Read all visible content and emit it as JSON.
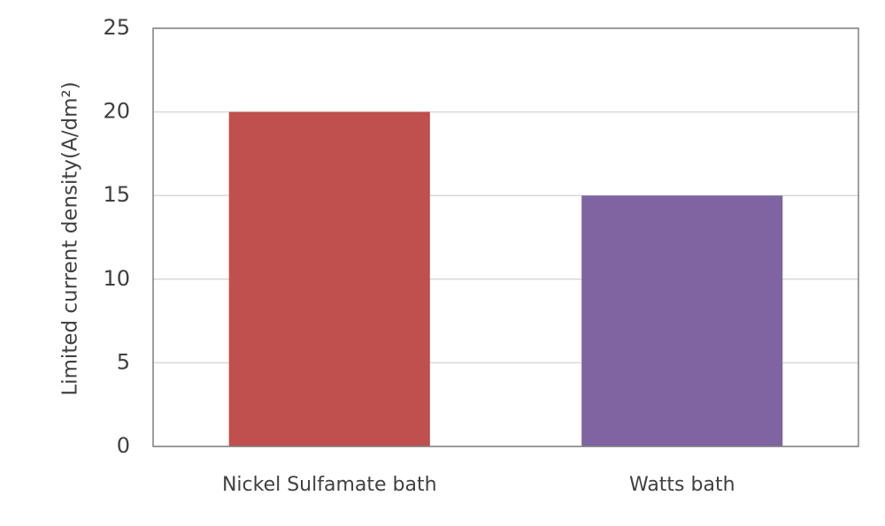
{
  "chart_data": {
    "type": "bar",
    "y_label": "Limited current density(A/dm²)",
    "categories": [
      "Nickel Sulfamate bath",
      "Watts bath"
    ],
    "values": [
      20,
      15
    ],
    "colors": [
      "#c0504d",
      "#8064a2"
    ],
    "ylim": [
      0,
      25
    ],
    "yticks": [
      0,
      5,
      10,
      15,
      20,
      25
    ],
    "grid": true
  }
}
